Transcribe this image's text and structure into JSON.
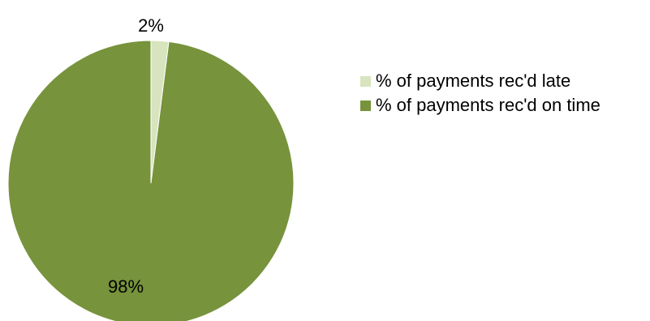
{
  "chart_data": {
    "type": "pie",
    "title": "",
    "slices": [
      {
        "label": "% of payments rec'd late",
        "value": 2,
        "display": "2%",
        "color": "#d7e4bd"
      },
      {
        "label": "% of payments rec'd on time",
        "value": 98,
        "display": "98%",
        "color": "#77933c"
      }
    ],
    "legend_position": "right"
  }
}
